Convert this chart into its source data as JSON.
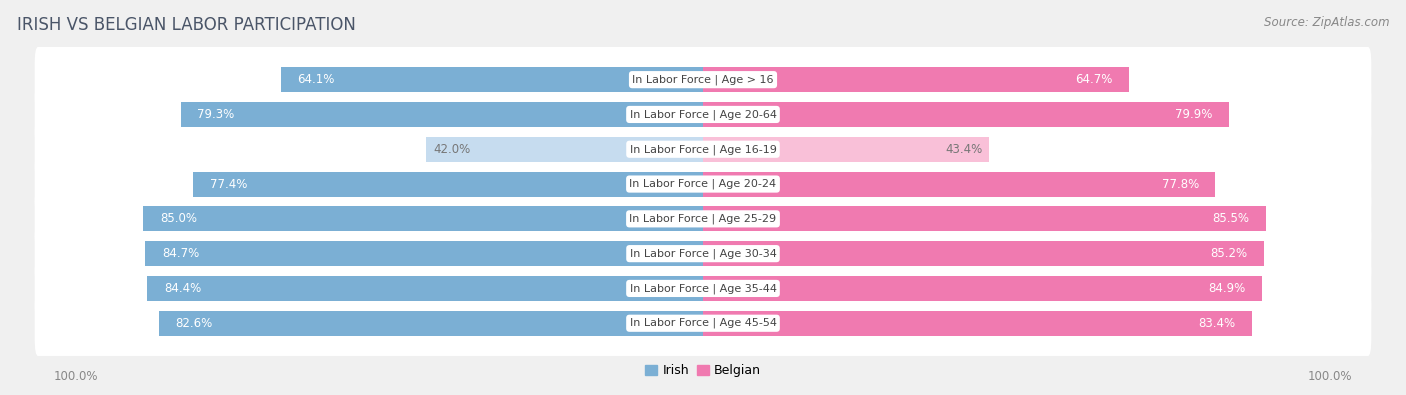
{
  "title": "IRISH VS BELGIAN LABOR PARTICIPATION",
  "source": "Source: ZipAtlas.com",
  "categories": [
    "In Labor Force | Age > 16",
    "In Labor Force | Age 20-64",
    "In Labor Force | Age 16-19",
    "In Labor Force | Age 20-24",
    "In Labor Force | Age 25-29",
    "In Labor Force | Age 30-34",
    "In Labor Force | Age 35-44",
    "In Labor Force | Age 45-54"
  ],
  "irish_values": [
    64.1,
    79.3,
    42.0,
    77.4,
    85.0,
    84.7,
    84.4,
    82.6
  ],
  "belgian_values": [
    64.7,
    79.9,
    43.4,
    77.8,
    85.5,
    85.2,
    84.9,
    83.4
  ],
  "irish_color_strong": "#7BAFD4",
  "irish_color_light": "#C6DCEF",
  "belgian_color_strong": "#F07AB0",
  "belgian_color_light": "#F9C0D8",
  "label_color_strong": "#FFFFFF",
  "label_color_light": "#777777",
  "light_rows": [
    2
  ],
  "background_color": "#f0f0f0",
  "row_bg_color": "#e8e8e8",
  "bar_background": "#ffffff",
  "max_value": 100.0,
  "bar_height": 0.72,
  "title_fontsize": 12,
  "label_fontsize": 8.5,
  "category_fontsize": 8.0,
  "footer_fontsize": 8.5,
  "title_color": "#4a5568",
  "source_color": "#888888",
  "footer_color": "#888888"
}
